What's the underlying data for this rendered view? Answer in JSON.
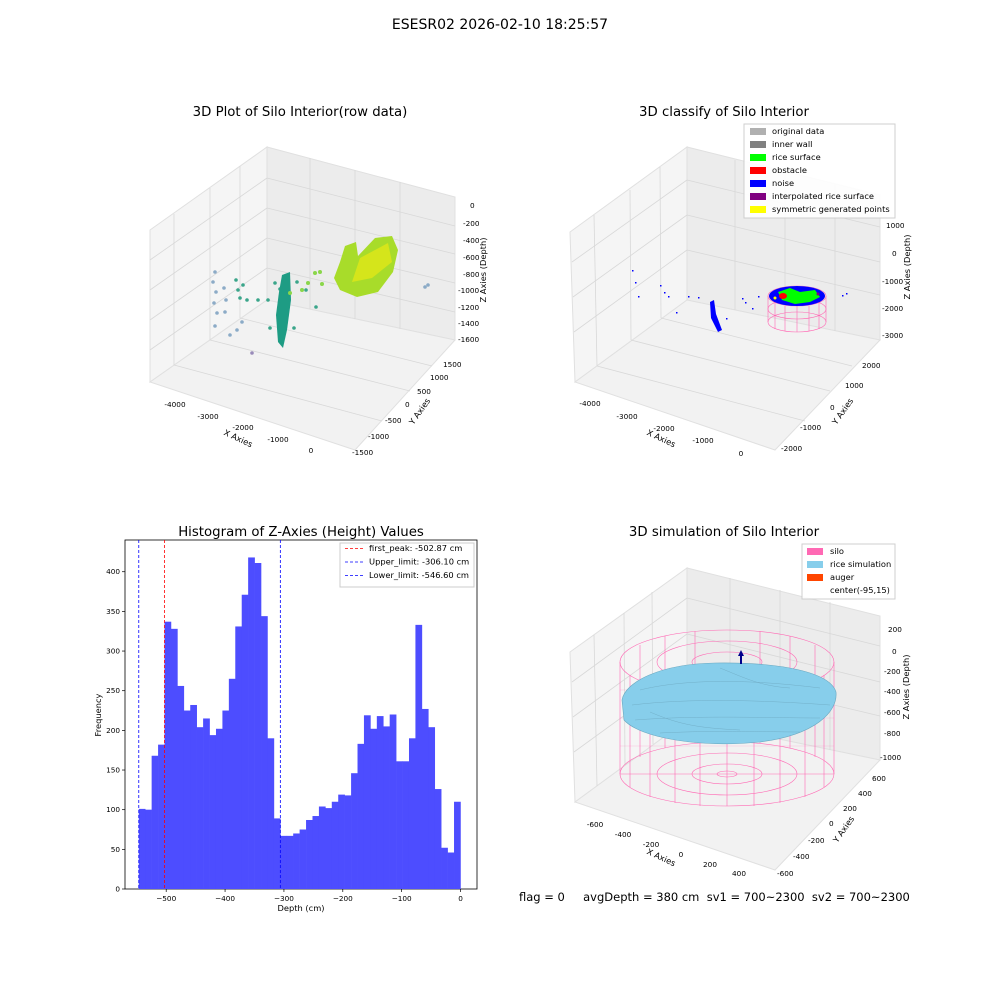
{
  "figure": {
    "title": "ESESR02 2026-02-10 18:25:57",
    "status_line": "flag = 0     avgDepth = 380 cm  sv1 = 700~2300  sv2 = 700~2300"
  },
  "colors": {
    "histogram_bars": "#4d4dff",
    "first_peak_line": "#ff0000",
    "limit_lines": "#0000ff",
    "silo_wireframe": "#ff69b4",
    "rice_surface": "#87ceeb",
    "rice_surface_raw": "#9acd32",
    "noise_points": "#0000ff"
  },
  "panels": {
    "raw": {
      "title": "3D Plot of Silo Interior(row data)",
      "xlabel": "X Axies",
      "ylabel": "Y Axies",
      "zlabel": "Z Axies (Depth)",
      "xticks": [
        "-4000",
        "-3000",
        "-2000",
        "-1000",
        "0"
      ],
      "yticks": [
        "1500",
        "1000",
        "500",
        "0",
        "-500",
        "-1000",
        "-1500"
      ],
      "zticks": [
        "0",
        "-200",
        "-400",
        "-600",
        "-800",
        "-1000",
        "-1200",
        "-1400",
        "-1600"
      ]
    },
    "classify": {
      "title": "3D classify of Silo Interior",
      "xlabel": "X Axies",
      "ylabel": "Y Axies",
      "zlabel": "Z Axies (Depth)",
      "xticks": [
        "-4000",
        "-3000",
        "-2000",
        "-1000",
        "0"
      ],
      "yticks": [
        "2000",
        "1000",
        "0",
        "-1000",
        "-2000"
      ],
      "zticks": [
        "1000",
        "0",
        "-1000",
        "-2000",
        "-3000"
      ],
      "legend": [
        {
          "label": "original data",
          "color": "#b0b0b0"
        },
        {
          "label": "inner wall",
          "color": "#808080"
        },
        {
          "label": "rice surface",
          "color": "#00ff00"
        },
        {
          "label": "obstacle",
          "color": "#ff0000"
        },
        {
          "label": "noise",
          "color": "#0000ff"
        },
        {
          "label": "interpolated rice surface",
          "color": "#800080"
        },
        {
          "label": "symmetric generated points",
          "color": "#ffff00"
        }
      ]
    },
    "simulation": {
      "title": "3D simulation of Silo Interior",
      "xlabel": "X Axies",
      "ylabel": "Y Axies",
      "zlabel": "Z Axies (Depth)",
      "xticks": [
        "-600",
        "-400",
        "-200",
        "0",
        "200",
        "400"
      ],
      "yticks": [
        "600",
        "400",
        "200",
        "0",
        "-200",
        "-400",
        "-600"
      ],
      "zticks": [
        "200",
        "0",
        "-200",
        "-400",
        "-600",
        "-800",
        "-1000"
      ],
      "legend": [
        {
          "label": "silo",
          "color": "#ff69b4"
        },
        {
          "label": "rice simulation",
          "color": "#87ceeb"
        },
        {
          "label": "auger",
          "color": "#ff4500"
        },
        {
          "label": "center(-95,15)",
          "color": ""
        }
      ]
    }
  },
  "chart_data": [
    {
      "type": "bar",
      "title": "Histogram of Z-Axies (Height) Values",
      "xlabel": "Depth (cm)",
      "ylabel": "Frequency",
      "xlim": [
        -570,
        28
      ],
      "ylim": [
        0,
        440
      ],
      "xticks": [
        -500,
        -400,
        -300,
        -200,
        -100,
        0
      ],
      "yticks": [
        0,
        50,
        100,
        150,
        200,
        250,
        300,
        350,
        400
      ],
      "bin_start": -546.6,
      "bin_width": 10.93,
      "values": [
        101,
        100,
        168,
        182,
        337,
        328,
        256,
        225,
        232,
        204,
        215,
        194,
        202,
        225,
        265,
        331,
        371,
        418,
        411,
        344,
        190,
        89,
        67,
        67,
        70,
        75,
        87,
        92,
        104,
        102,
        110,
        119,
        118,
        146,
        183,
        219,
        202,
        218,
        205,
        220,
        161,
        161,
        190,
        333,
        227,
        204,
        126,
        52,
        46,
        110
      ],
      "vlines": [
        {
          "label": "first_peak: -502.87 cm",
          "x": -502.87,
          "color": "#ff0000"
        },
        {
          "label": "Upper_limit: -306.10 cm",
          "x": -306.1,
          "color": "#0000ff"
        },
        {
          "label": "Lower_limit: -546.60 cm",
          "x": -546.6,
          "color": "#0000ff"
        }
      ],
      "grid": false,
      "legend_position": "top-right"
    }
  ]
}
